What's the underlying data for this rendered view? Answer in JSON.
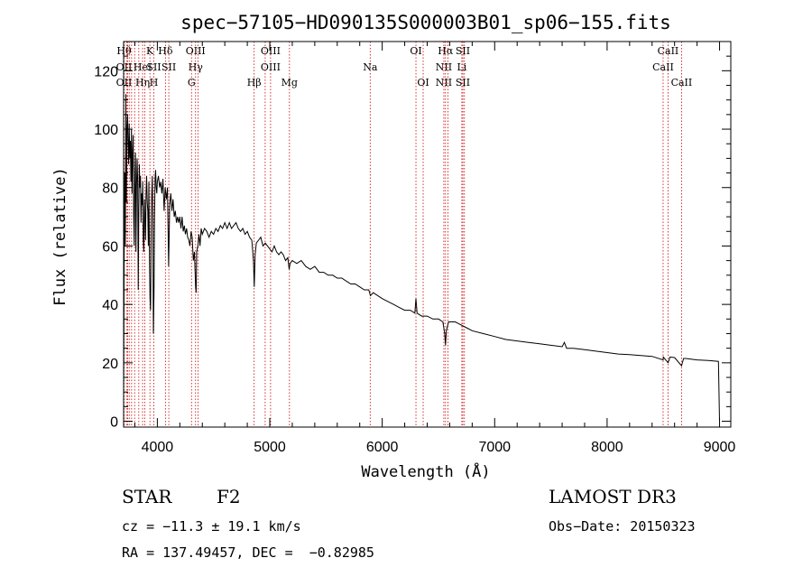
{
  "chart_data": {
    "type": "line",
    "title": "spec−57105−HD090135S000003B01_sp06−155.fits",
    "xlabel": "Wavelength (Å)",
    "ylabel": "Flux (relative)",
    "xlim": [
      3700,
      9100
    ],
    "ylim": [
      -2,
      130
    ],
    "xticks": [
      4000,
      5000,
      6000,
      7000,
      8000,
      9000
    ],
    "yticks": [
      0,
      20,
      40,
      60,
      80,
      100,
      120
    ],
    "line_color": "#000000",
    "marker_color": "#cc0000",
    "series": [
      {
        "name": "flux",
        "points": [
          [
            3700,
            10
          ],
          [
            3705,
            55
          ],
          [
            3710,
            85
          ],
          [
            3715,
            60
          ],
          [
            3720,
            112
          ],
          [
            3725,
            75
          ],
          [
            3730,
            100
          ],
          [
            3735,
            105
          ],
          [
            3740,
            95
          ],
          [
            3745,
            88
          ],
          [
            3750,
            102
          ],
          [
            3755,
            90
          ],
          [
            3760,
            96
          ],
          [
            3765,
            82
          ],
          [
            3770,
            100
          ],
          [
            3775,
            78
          ],
          [
            3780,
            92
          ],
          [
            3785,
            98
          ],
          [
            3790,
            70
          ],
          [
            3795,
            60
          ],
          [
            3800,
            85
          ],
          [
            3805,
            92
          ],
          [
            3810,
            58
          ],
          [
            3815,
            80
          ],
          [
            3820,
            90
          ],
          [
            3825,
            82
          ],
          [
            3830,
            45
          ],
          [
            3835,
            72
          ],
          [
            3840,
            88
          ],
          [
            3845,
            80
          ],
          [
            3850,
            84
          ],
          [
            3855,
            68
          ],
          [
            3860,
            78
          ],
          [
            3865,
            74
          ],
          [
            3870,
            82
          ],
          [
            3875,
            62
          ],
          [
            3880,
            58
          ],
          [
            3885,
            76
          ],
          [
            3890,
            70
          ],
          [
            3895,
            62
          ],
          [
            3900,
            78
          ],
          [
            3905,
            84
          ],
          [
            3910,
            75
          ],
          [
            3915,
            72
          ],
          [
            3920,
            60
          ],
          [
            3925,
            82
          ],
          [
            3930,
            55
          ],
          [
            3935,
            42
          ],
          [
            3940,
            38
          ],
          [
            3945,
            64
          ],
          [
            3950,
            78
          ],
          [
            3955,
            84
          ],
          [
            3960,
            70
          ],
          [
            3965,
            30
          ],
          [
            3970,
            44
          ],
          [
            3975,
            70
          ],
          [
            3980,
            83
          ],
          [
            3985,
            86
          ],
          [
            3990,
            80
          ],
          [
            3995,
            78
          ],
          [
            4000,
            82
          ],
          [
            4010,
            84
          ],
          [
            4020,
            80
          ],
          [
            4030,
            82
          ],
          [
            4040,
            78
          ],
          [
            4050,
            83
          ],
          [
            4060,
            72
          ],
          [
            4070,
            80
          ],
          [
            4080,
            76
          ],
          [
            4090,
            80
          ],
          [
            4100,
            53
          ],
          [
            4110,
            74
          ],
          [
            4120,
            78
          ],
          [
            4130,
            72
          ],
          [
            4140,
            76
          ],
          [
            4150,
            70
          ],
          [
            4160,
            72
          ],
          [
            4170,
            68
          ],
          [
            4180,
            70
          ],
          [
            4190,
            68
          ],
          [
            4200,
            70
          ],
          [
            4210,
            66
          ],
          [
            4220,
            70
          ],
          [
            4230,
            65
          ],
          [
            4240,
            67
          ],
          [
            4250,
            64
          ],
          [
            4260,
            66
          ],
          [
            4270,
            63
          ],
          [
            4280,
            62
          ],
          [
            4290,
            60
          ],
          [
            4300,
            65
          ],
          [
            4310,
            63
          ],
          [
            4320,
            55
          ],
          [
            4330,
            58
          ],
          [
            4340,
            46
          ],
          [
            4345,
            44
          ],
          [
            4350,
            58
          ],
          [
            4360,
            60
          ],
          [
            4370,
            64
          ],
          [
            4380,
            60
          ],
          [
            4390,
            66
          ],
          [
            4400,
            64
          ],
          [
            4420,
            66
          ],
          [
            4440,
            65
          ],
          [
            4460,
            63
          ],
          [
            4480,
            65
          ],
          [
            4500,
            64
          ],
          [
            4520,
            66
          ],
          [
            4540,
            65
          ],
          [
            4560,
            67
          ],
          [
            4580,
            66
          ],
          [
            4600,
            68
          ],
          [
            4620,
            66
          ],
          [
            4640,
            68
          ],
          [
            4660,
            66
          ],
          [
            4680,
            67
          ],
          [
            4700,
            68
          ],
          [
            4720,
            66
          ],
          [
            4740,
            65
          ],
          [
            4760,
            66
          ],
          [
            4780,
            64
          ],
          [
            4800,
            65
          ],
          [
            4820,
            63
          ],
          [
            4840,
            62
          ],
          [
            4855,
            55
          ],
          [
            4862,
            46
          ],
          [
            4870,
            57
          ],
          [
            4880,
            61
          ],
          [
            4900,
            62
          ],
          [
            4920,
            63
          ],
          [
            4940,
            60
          ],
          [
            4960,
            61
          ],
          [
            4980,
            60
          ],
          [
            5000,
            59
          ],
          [
            5020,
            58
          ],
          [
            5040,
            60
          ],
          [
            5060,
            58
          ],
          [
            5080,
            57
          ],
          [
            5100,
            58
          ],
          [
            5120,
            57
          ],
          [
            5140,
            55
          ],
          [
            5160,
            56
          ],
          [
            5172,
            52
          ],
          [
            5180,
            54
          ],
          [
            5200,
            55
          ],
          [
            5240,
            54
          ],
          [
            5280,
            55
          ],
          [
            5320,
            53
          ],
          [
            5360,
            52
          ],
          [
            5400,
            53
          ],
          [
            5440,
            51
          ],
          [
            5480,
            51
          ],
          [
            5520,
            50
          ],
          [
            5560,
            50
          ],
          [
            5600,
            49
          ],
          [
            5640,
            49
          ],
          [
            5680,
            48
          ],
          [
            5720,
            47
          ],
          [
            5760,
            47
          ],
          [
            5800,
            46
          ],
          [
            5840,
            45
          ],
          [
            5880,
            45
          ],
          [
            5895,
            43
          ],
          [
            5920,
            44
          ],
          [
            5960,
            43
          ],
          [
            6000,
            42
          ],
          [
            6050,
            41
          ],
          [
            6100,
            40
          ],
          [
            6150,
            39
          ],
          [
            6200,
            38
          ],
          [
            6250,
            38
          ],
          [
            6290,
            37
          ],
          [
            6300,
            42
          ],
          [
            6310,
            37
          ],
          [
            6350,
            36
          ],
          [
            6400,
            36
          ],
          [
            6450,
            35
          ],
          [
            6500,
            35
          ],
          [
            6540,
            34
          ],
          [
            6556,
            30
          ],
          [
            6563,
            26
          ],
          [
            6570,
            31
          ],
          [
            6590,
            34
          ],
          [
            6650,
            34
          ],
          [
            6700,
            33
          ],
          [
            6750,
            32
          ],
          [
            6800,
            31
          ],
          [
            6900,
            30
          ],
          [
            7000,
            29
          ],
          [
            7100,
            28
          ],
          [
            7200,
            27.5
          ],
          [
            7300,
            27
          ],
          [
            7400,
            26.5
          ],
          [
            7500,
            26
          ],
          [
            7600,
            25.5
          ],
          [
            7620,
            27
          ],
          [
            7640,
            25
          ],
          [
            7700,
            25
          ],
          [
            7800,
            24.5
          ],
          [
            7900,
            24
          ],
          [
            8000,
            23.5
          ],
          [
            8100,
            23
          ],
          [
            8200,
            22.8
          ],
          [
            8300,
            22.5
          ],
          [
            8400,
            22.2
          ],
          [
            8498,
            21
          ],
          [
            8500,
            22
          ],
          [
            8542,
            20
          ],
          [
            8560,
            22
          ],
          [
            8600,
            21.8
          ],
          [
            8662,
            19
          ],
          [
            8680,
            21.5
          ],
          [
            8700,
            21.5
          ],
          [
            8800,
            21
          ],
          [
            8900,
            20.8
          ],
          [
            8990,
            20.5
          ],
          [
            9000,
            0
          ]
        ]
      }
    ],
    "line_markers": [
      {
        "w": 3704,
        "labels": [
          "Hθ",
          "OII",
          "OII"
        ]
      },
      {
        "w": 3730,
        "labels": []
      },
      {
        "w": 3736,
        "labels": []
      },
      {
        "w": 3750,
        "labels": []
      },
      {
        "w": 3771,
        "labels": []
      },
      {
        "w": 3798,
        "labels": []
      },
      {
        "w": 3835,
        "labels": []
      },
      {
        "w": 3869,
        "labels": [
          "",
          "HeI",
          "Hη"
        ]
      },
      {
        "w": 3889,
        "labels": []
      },
      {
        "w": 3934,
        "labels": [
          "K"
        ]
      },
      {
        "w": 3969,
        "labels": [
          "",
          "SII",
          "H"
        ]
      },
      {
        "w": 4072,
        "labels": [
          "Hδ"
        ]
      },
      {
        "w": 4102,
        "labels": [
          "",
          "SII"
        ]
      },
      {
        "w": 4304,
        "labels": [
          "",
          "",
          "G"
        ]
      },
      {
        "w": 4340,
        "labels": [
          "OIII",
          "Hγ"
        ]
      },
      {
        "w": 4363,
        "labels": []
      },
      {
        "w": 4861,
        "labels": [
          "",
          "",
          "Hβ"
        ]
      },
      {
        "w": 4959,
        "labels": []
      },
      {
        "w": 5007,
        "labels": [
          "OIII",
          "OIII"
        ]
      },
      {
        "w": 5175,
        "labels": [
          "",
          "",
          "Mg"
        ]
      },
      {
        "w": 5893,
        "labels": [
          "",
          "Na"
        ]
      },
      {
        "w": 6300,
        "labels": [
          "OI"
        ]
      },
      {
        "w": 6364,
        "labels": [
          "",
          "",
          "OI"
        ]
      },
      {
        "w": 6548,
        "labels": [
          "",
          "NII",
          "NII"
        ]
      },
      {
        "w": 6563,
        "labels": [
          "Hα"
        ]
      },
      {
        "w": 6584,
        "labels": []
      },
      {
        "w": 6708,
        "labels": [
          "",
          "Li"
        ]
      },
      {
        "w": 6717,
        "labels": [
          "SII",
          "",
          "SII"
        ]
      },
      {
        "w": 6731,
        "labels": []
      },
      {
        "w": 8498,
        "labels": [
          "",
          "CaII"
        ]
      },
      {
        "w": 8542,
        "labels": [
          "CaII"
        ]
      },
      {
        "w": 8662,
        "labels": [
          "",
          "",
          "CaII"
        ]
      }
    ]
  },
  "footer": {
    "object_class": "STAR",
    "subclass": "F2",
    "survey": "LAMOST DR3",
    "velocity": "cz = −11.3 ± 19.1 km/s",
    "obs_date": "Obs−Date: 20150323",
    "coords": "RA = 137.49457, DEC =  −0.82985"
  }
}
